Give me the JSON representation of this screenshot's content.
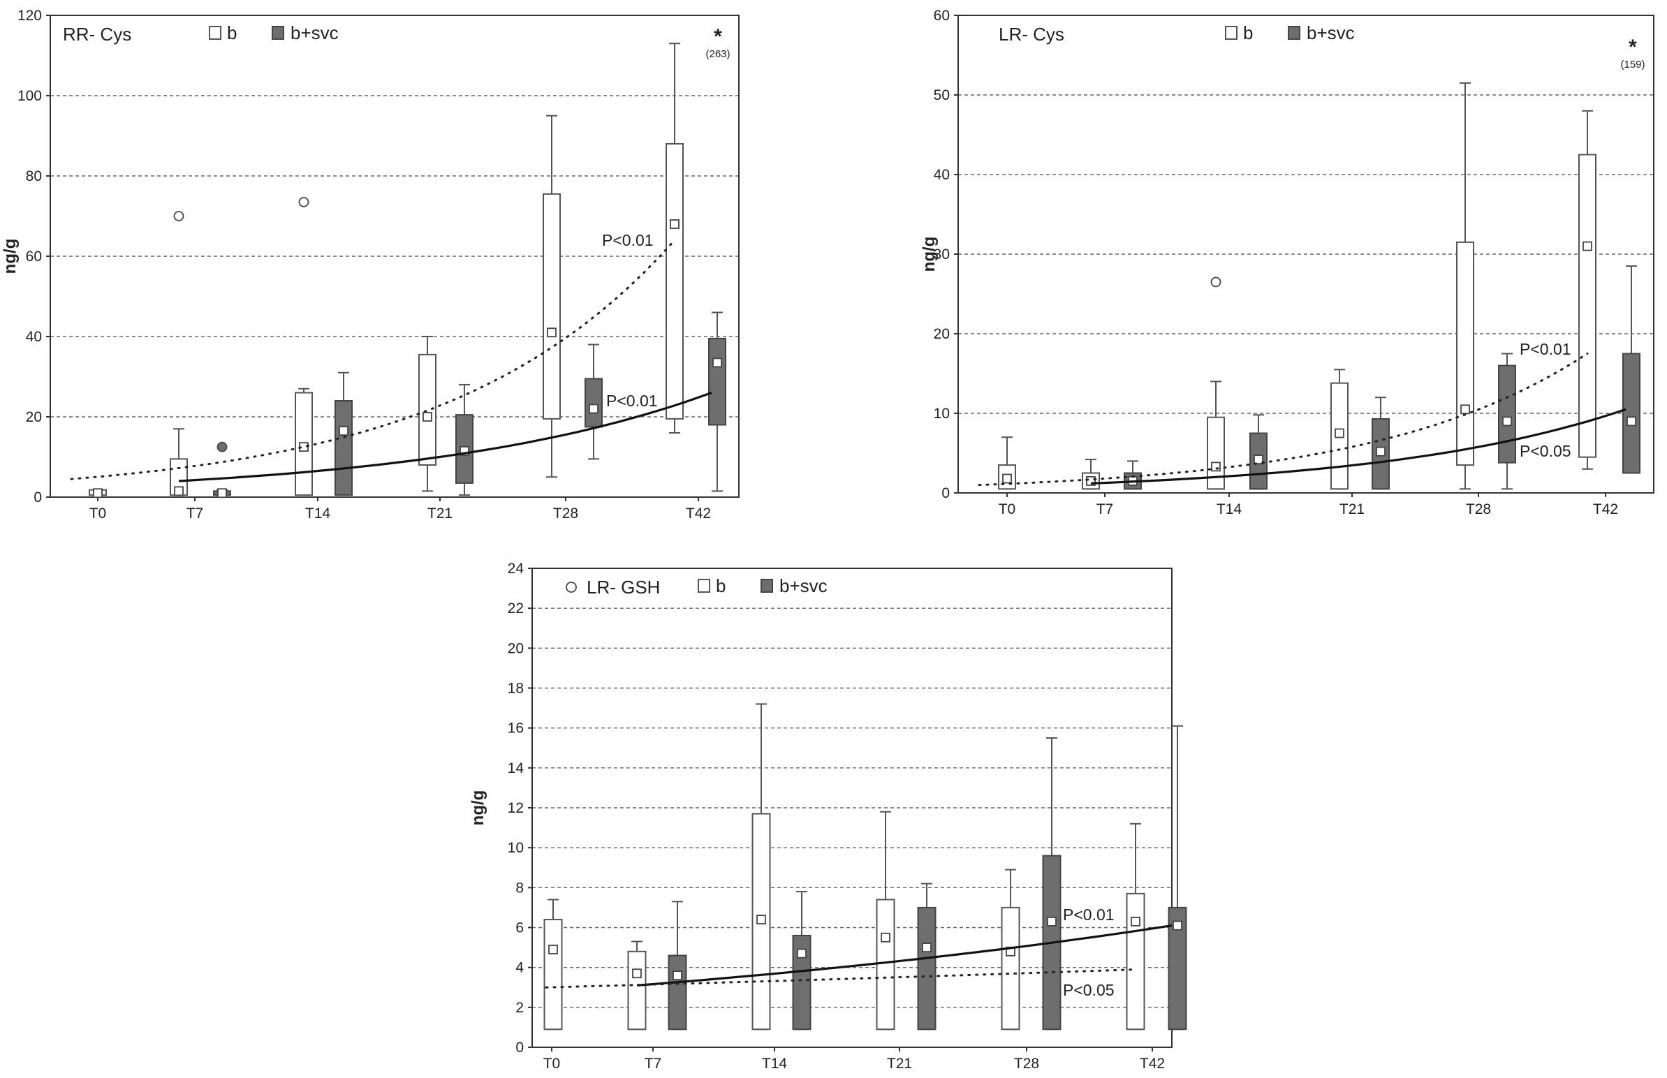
{
  "chart_data": [
    {
      "id": "rr_cys",
      "type": "box",
      "title": "RR- Cys",
      "ylabel": "ng/g",
      "ylim": [
        0,
        120
      ],
      "yticks": [
        0,
        20,
        40,
        60,
        80,
        100,
        120
      ],
      "grid": true,
      "legend": [
        "b",
        "b+svc"
      ],
      "categories": [
        "T0",
        "T7",
        "T14",
        "T21",
        "T28",
        "T42"
      ],
      "series": [
        {
          "name": "b",
          "color": "#ffffff",
          "boxes": [
            {
              "cat": "T0",
              "min": 0.5,
              "q1": 0.5,
              "q3": 1.8,
              "max": 1.8,
              "mean": 1.0
            },
            {
              "cat": "T7",
              "min": 0.5,
              "q1": 0.5,
              "q3": 9.5,
              "max": 17,
              "mean": 1.5
            },
            {
              "cat": "T14",
              "min": 0.5,
              "q1": 0.5,
              "q3": 26,
              "max": 27,
              "mean": 12.5
            },
            {
              "cat": "T21",
              "min": 1.5,
              "q1": 8,
              "q3": 35.5,
              "max": 40,
              "mean": 20
            },
            {
              "cat": "T28",
              "min": 5,
              "q1": 19.5,
              "q3": 75.5,
              "max": 95,
              "mean": 41
            },
            {
              "cat": "T42",
              "min": 16,
              "q1": 19.5,
              "q3": 88,
              "max": 113,
              "mean": 68
            }
          ]
        },
        {
          "name": "b+svc",
          "color": "#6e6e6e",
          "boxes": [
            {
              "cat": "T7",
              "min": 0.5,
              "q1": 0.5,
              "q3": 1.5,
              "max": 1.8,
              "mean": 1.0
            },
            {
              "cat": "T14",
              "min": 0.5,
              "q1": 0.5,
              "q3": 24,
              "max": 31,
              "mean": 16.5
            },
            {
              "cat": "T21",
              "min": 0.5,
              "q1": 3.5,
              "q3": 20.5,
              "max": 28,
              "mean": 11.5
            },
            {
              "cat": "T28",
              "min": 9.5,
              "q1": 17.5,
              "q3": 29.5,
              "max": 38,
              "mean": 22
            },
            {
              "cat": "T42",
              "min": 1.5,
              "q1": 18,
              "q3": 39.5,
              "max": 46,
              "mean": 33.5
            }
          ]
        }
      ],
      "outliers": [
        {
          "series": "b",
          "cat": "T7",
          "value": 70
        },
        {
          "series": "b+svc",
          "cat": "T7",
          "value": 12.5
        },
        {
          "series": "b",
          "cat": "T14",
          "value": 73.5
        }
      ],
      "extreme": {
        "symbol": "*",
        "label": "(263)",
        "cat": "T42"
      },
      "trends": [
        {
          "series": "b",
          "style": "dotted",
          "label": "P<0.01",
          "start": 4.5,
          "end": 64
        },
        {
          "series": "b+svc",
          "style": "solid",
          "label": "P<0.01",
          "start": 4,
          "end": 26
        }
      ]
    },
    {
      "id": "lr_cys",
      "type": "box",
      "title": "LR- Cys",
      "ylabel": "ng/g",
      "ylim": [
        0,
        60
      ],
      "yticks": [
        0,
        10,
        20,
        30,
        40,
        50,
        60
      ],
      "grid": true,
      "legend": [
        "b",
        "b+svc"
      ],
      "categories": [
        "T0",
        "T7",
        "T14",
        "T21",
        "T28",
        "T42"
      ],
      "series": [
        {
          "name": "b",
          "color": "#ffffff",
          "boxes": [
            {
              "cat": "T0",
              "min": 0.5,
              "q1": 0.5,
              "q3": 3.5,
              "max": 7,
              "mean": 1.8
            },
            {
              "cat": "T7",
              "min": 0.5,
              "q1": 0.5,
              "q3": 2.5,
              "max": 4.2,
              "mean": 1.5
            },
            {
              "cat": "T14",
              "min": 0.5,
              "q1": 0.5,
              "q3": 9.5,
              "max": 14,
              "mean": 3.3
            },
            {
              "cat": "T21",
              "min": 0.5,
              "q1": 0.5,
              "q3": 13.8,
              "max": 15.5,
              "mean": 7.5
            },
            {
              "cat": "T28",
              "min": 0.5,
              "q1": 3.5,
              "q3": 31.5,
              "max": 51.5,
              "mean": 10.5
            },
            {
              "cat": "T42",
              "min": 3,
              "q1": 4.5,
              "q3": 42.5,
              "max": 48,
              "mean": 31
            }
          ]
        },
        {
          "name": "b+svc",
          "color": "#6e6e6e",
          "boxes": [
            {
              "cat": "T7",
              "min": 0.5,
              "q1": 0.5,
              "q3": 2.5,
              "max": 4,
              "mean": 1.5
            },
            {
              "cat": "T14",
              "min": 0.5,
              "q1": 0.5,
              "q3": 7.5,
              "max": 9.8,
              "mean": 4.2
            },
            {
              "cat": "T21",
              "min": 0.5,
              "q1": 0.5,
              "q3": 9.3,
              "max": 12,
              "mean": 5.2
            },
            {
              "cat": "T28",
              "min": 0.5,
              "q1": 3.8,
              "q3": 16,
              "max": 17.5,
              "mean": 9
            },
            {
              "cat": "T42",
              "min": 2.5,
              "q1": 2.5,
              "q3": 17.5,
              "max": 28.5,
              "mean": 9
            }
          ]
        }
      ],
      "outliers": [
        {
          "series": "b",
          "cat": "T14",
          "value": 26.5
        }
      ],
      "extreme": {
        "symbol": "*",
        "label": "(159)",
        "cat": "T42"
      },
      "trends": [
        {
          "series": "b",
          "style": "dotted",
          "label": "P<0.01",
          "start": 1,
          "end": 17.5
        },
        {
          "series": "b+svc",
          "style": "solid",
          "label": "P<0.05",
          "start": 1.2,
          "end": 10.5
        }
      ]
    },
    {
      "id": "lr_gsh",
      "type": "box",
      "title": "LR- GSH",
      "ylabel": "ng/g",
      "ylim": [
        0,
        24
      ],
      "yticks": [
        0,
        2,
        4,
        6,
        8,
        10,
        12,
        14,
        16,
        18,
        20,
        22,
        24
      ],
      "grid": true,
      "legend": [
        "b",
        "b+svc"
      ],
      "categories": [
        "T0",
        "T7",
        "T14",
        "T21",
        "T28",
        "T42"
      ],
      "series": [
        {
          "name": "b",
          "color": "#ffffff",
          "boxes": [
            {
              "cat": "T0",
              "min": 0.9,
              "q1": 0.9,
              "q3": 6.4,
              "max": 7.4,
              "mean": 4.9
            },
            {
              "cat": "T7",
              "min": 0.9,
              "q1": 0.9,
              "q3": 4.8,
              "max": 5.3,
              "mean": 3.7
            },
            {
              "cat": "T14",
              "min": 0.9,
              "q1": 0.9,
              "q3": 11.7,
              "max": 17.2,
              "mean": 6.4
            },
            {
              "cat": "T21",
              "min": 0.9,
              "q1": 0.9,
              "q3": 7.4,
              "max": 11.8,
              "mean": 5.5
            },
            {
              "cat": "T28",
              "min": 0.9,
              "q1": 0.9,
              "q3": 7.0,
              "max": 8.9,
              "mean": 4.8
            },
            {
              "cat": "T42",
              "min": 0.9,
              "q1": 0.9,
              "q3": 7.7,
              "max": 11.2,
              "mean": 6.3
            }
          ]
        },
        {
          "name": "b+svc",
          "color": "#6e6e6e",
          "boxes": [
            {
              "cat": "T7",
              "min": 0.9,
              "q1": 0.9,
              "q3": 4.6,
              "max": 7.3,
              "mean": 3.6
            },
            {
              "cat": "T14",
              "min": 0.9,
              "q1": 0.9,
              "q3": 5.6,
              "max": 7.8,
              "mean": 4.7
            },
            {
              "cat": "T21",
              "min": 0.9,
              "q1": 0.9,
              "q3": 7.0,
              "max": 8.2,
              "mean": 5.0
            },
            {
              "cat": "T28",
              "min": 0.9,
              "q1": 0.9,
              "q3": 9.6,
              "max": 15.5,
              "mean": 6.3
            },
            {
              "cat": "T42",
              "min": 0.9,
              "q1": 0.9,
              "q3": 7.0,
              "max": 16.1,
              "mean": 6.1
            }
          ]
        }
      ],
      "outliers": [],
      "extreme": null,
      "trends": [
        {
          "series": "b+svc",
          "style": "solid",
          "label": "P<0.01",
          "start": 3.1,
          "end": 6.1
        },
        {
          "series": "b",
          "style": "dotted",
          "label": "P<0.05",
          "start": 3.0,
          "end": 3.9
        }
      ]
    }
  ]
}
